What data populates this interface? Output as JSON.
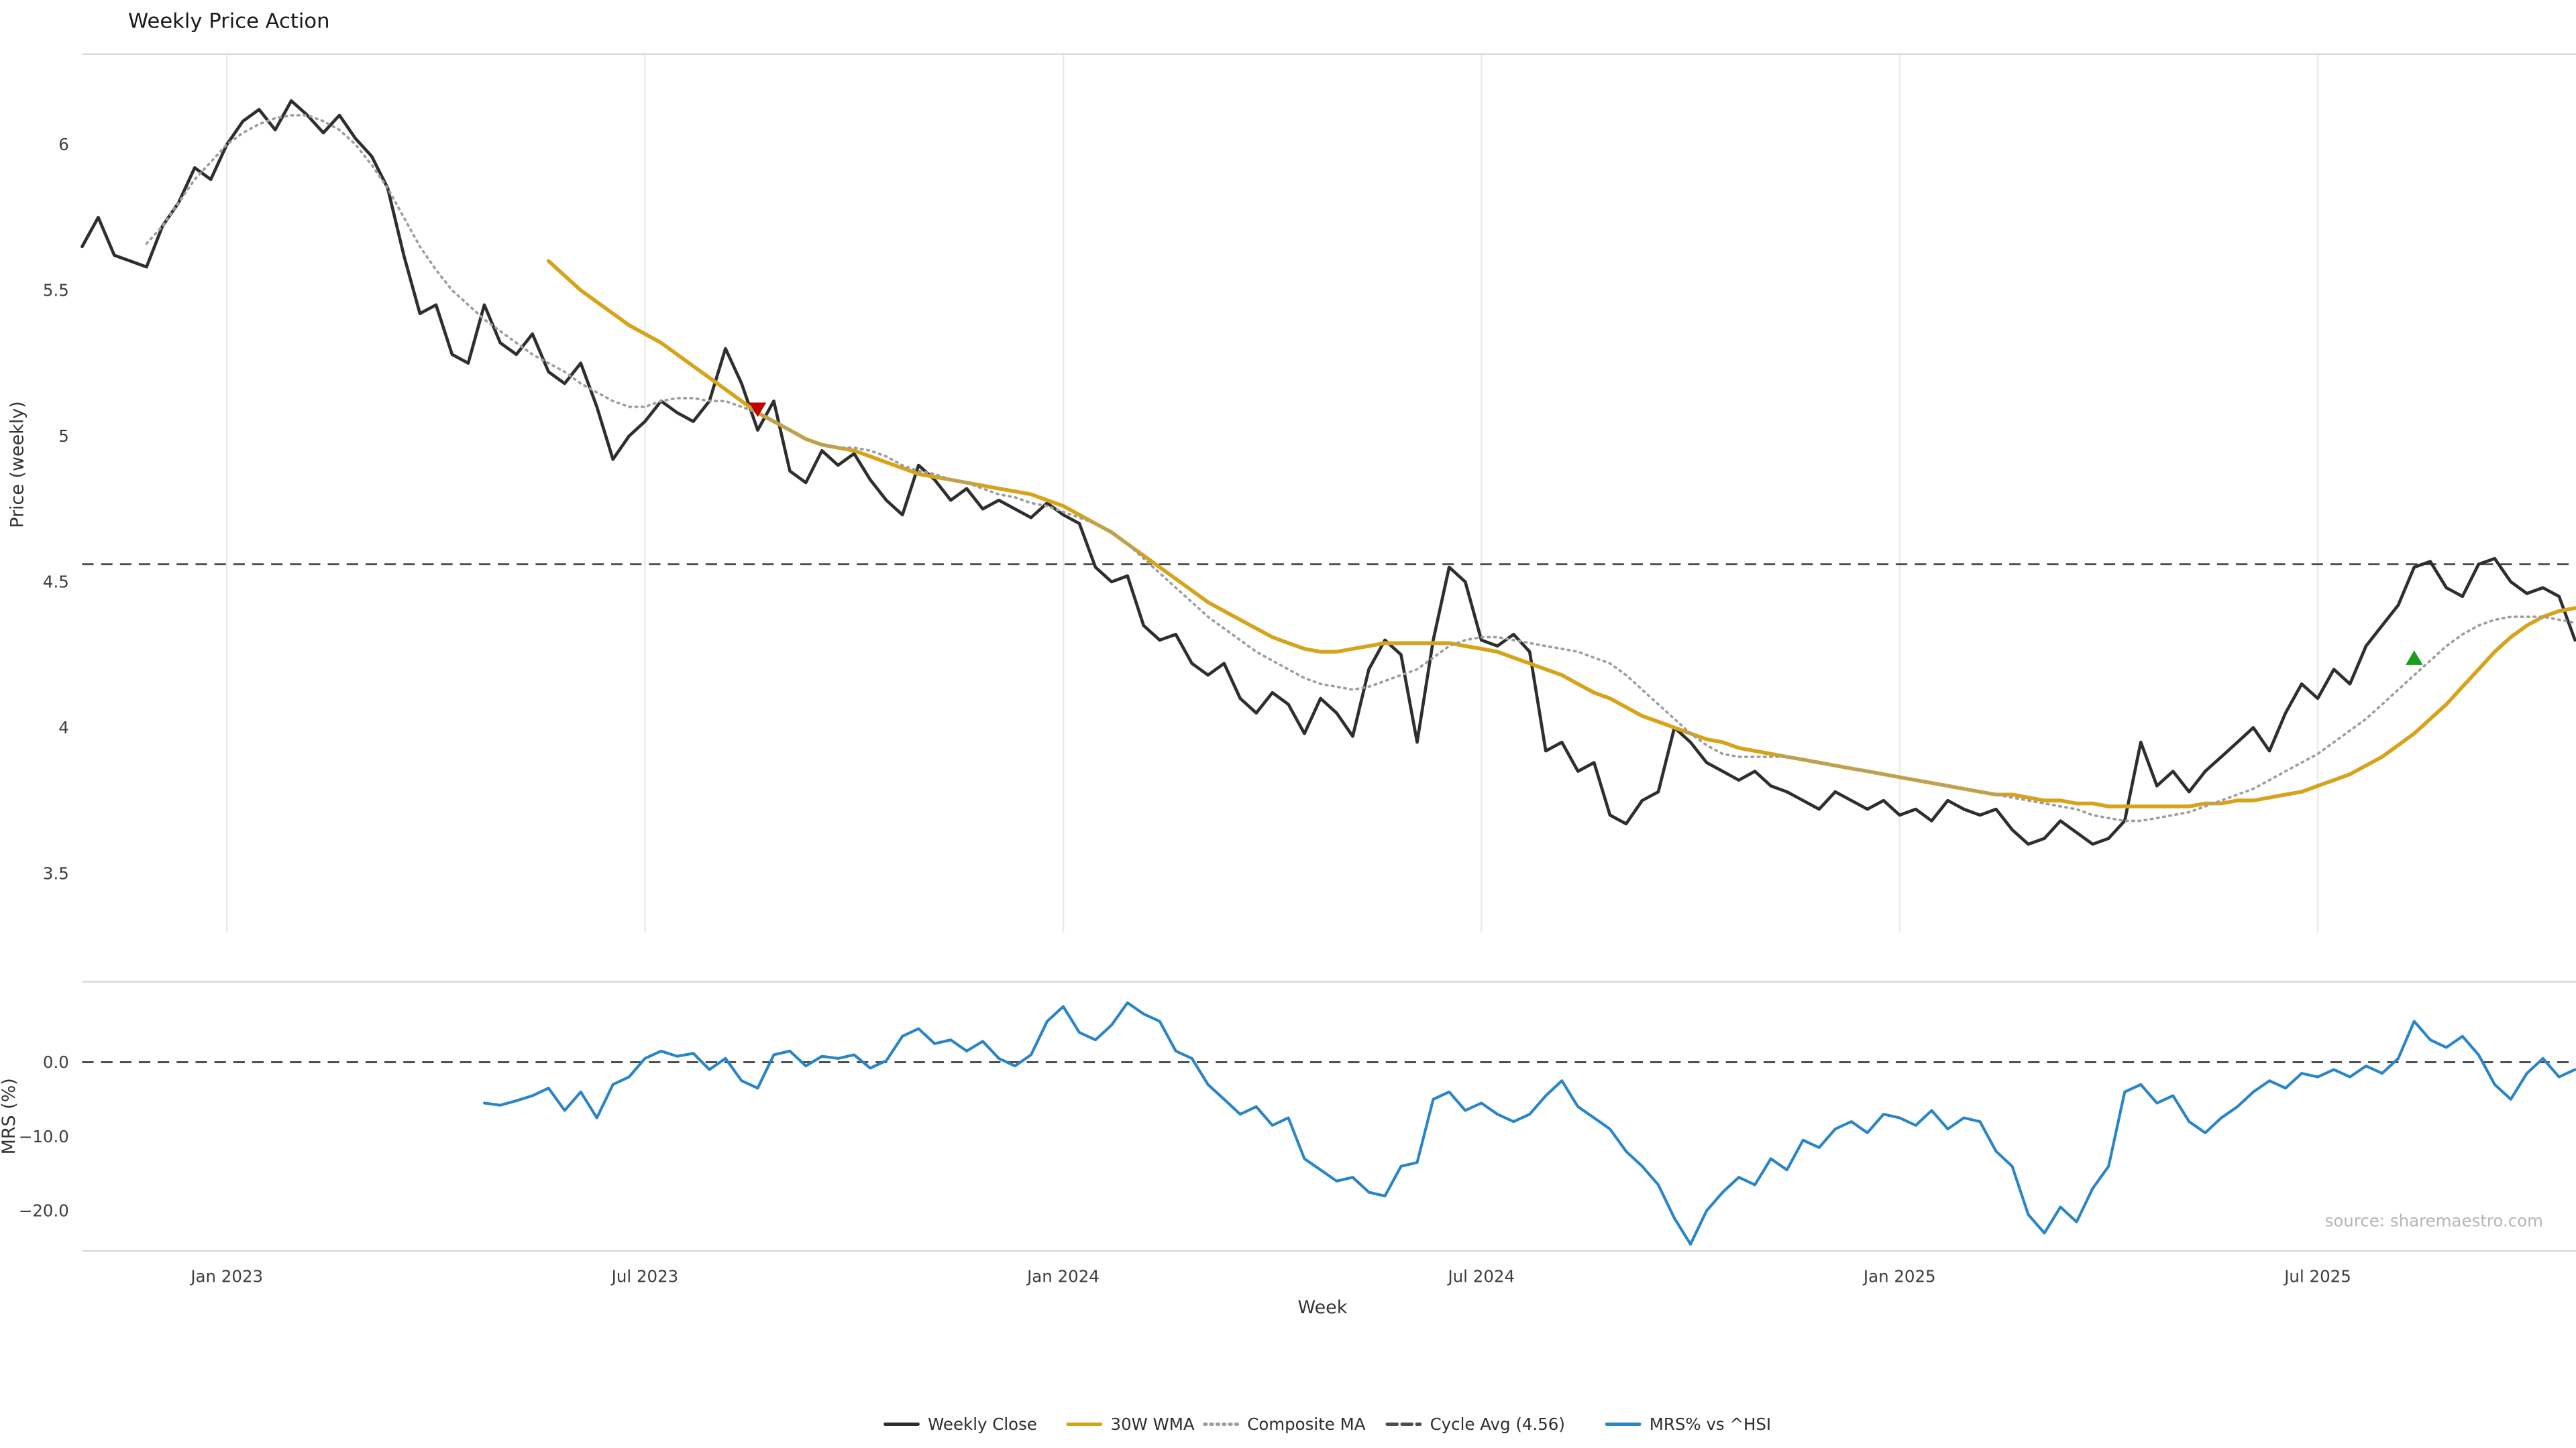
{
  "chart": {
    "title": "Weekly Price Action",
    "xlabel": "Week",
    "price_ylabel": "Price (weekly)",
    "mrs_ylabel": "MRS (%)",
    "source": "source: sharemaestro.com"
  },
  "colors": {
    "close": "#2e2e2e",
    "wma": "#d6a41b",
    "composite": "#9e9e9e",
    "cycle_avg": "#4d4d4d",
    "mrs": "#2a85c7",
    "sell_marker": "#c00000",
    "buy_marker": "#1a9e1a",
    "grid": "#ebebeb",
    "spine": "#d9d9d9"
  },
  "chart_data": {
    "type": "line",
    "title": "Weekly Price Action",
    "xlabel": "Week",
    "x_unit": "weekly index, week 0 = early Nov 2022",
    "grid": "vertical-only",
    "legend_position": "bottom-center",
    "x_ticks": [
      {
        "week": 9,
        "label": "Jan 2023"
      },
      {
        "week": 35,
        "label": "Jul 2023"
      },
      {
        "week": 61,
        "label": "Jan 2024"
      },
      {
        "week": 87,
        "label": "Jul 2024"
      },
      {
        "week": 113,
        "label": "Jan 2025"
      },
      {
        "week": 139,
        "label": "Jul 2025"
      }
    ],
    "price_panel": {
      "ylabel": "Price (weekly)",
      "ylim": [
        3.3,
        6.31
      ],
      "yticks": [
        {
          "v": 6,
          "label": "6"
        },
        {
          "v": 5.5,
          "label": "5.5"
        },
        {
          "v": 5,
          "label": "5"
        },
        {
          "v": 4.5,
          "label": "4.5"
        },
        {
          "v": 4,
          "label": "4"
        },
        {
          "v": 3.5,
          "label": "3.5"
        }
      ]
    },
    "mrs_panel": {
      "ylabel": "MRS (%)",
      "ylim": [
        -25.3,
        10.8
      ],
      "yticks": [
        {
          "v": 0,
          "label": "0.0"
        },
        {
          "v": -10,
          "label": "−10.0"
        },
        {
          "v": -20,
          "label": "−20.0"
        }
      ]
    },
    "reference_lines": [
      {
        "panel": "price",
        "value": 4.56,
        "label": "Cycle Avg (4.56)",
        "style": "dashed"
      },
      {
        "panel": "mrs",
        "value": 0,
        "label": "zero-line",
        "style": "dashed"
      }
    ],
    "markers": [
      {
        "kind": "sell",
        "shape": "triangle-down",
        "week": 42,
        "price": 5.09
      },
      {
        "kind": "buy",
        "shape": "triangle-up",
        "week": 145,
        "price": 4.24
      }
    ],
    "series": [
      {
        "name": "Weekly Close",
        "panel": "price",
        "color_key": "close",
        "style": "solid",
        "width": 1.9,
        "start_week": 0,
        "values": [
          5.65,
          5.75,
          5.62,
          5.6,
          5.58,
          5.72,
          5.8,
          5.92,
          5.88,
          6.0,
          6.08,
          6.12,
          6.05,
          6.15,
          6.1,
          6.04,
          6.1,
          6.02,
          5.96,
          5.85,
          5.62,
          5.42,
          5.45,
          5.28,
          5.25,
          5.45,
          5.32,
          5.28,
          5.35,
          5.22,
          5.18,
          5.25,
          5.1,
          4.92,
          5.0,
          5.05,
          5.12,
          5.08,
          5.05,
          5.12,
          5.3,
          5.18,
          5.02,
          5.12,
          4.88,
          4.84,
          4.95,
          4.9,
          4.94,
          4.85,
          4.78,
          4.73,
          4.9,
          4.85,
          4.78,
          4.82,
          4.75,
          4.78,
          4.75,
          4.72,
          4.77,
          4.73,
          4.7,
          4.55,
          4.5,
          4.52,
          4.35,
          4.3,
          4.32,
          4.22,
          4.18,
          4.22,
          4.1,
          4.05,
          4.12,
          4.08,
          3.98,
          4.1,
          4.05,
          3.97,
          4.2,
          4.3,
          4.25,
          3.95,
          4.3,
          4.55,
          4.5,
          4.3,
          4.28,
          4.32,
          4.26,
          3.92,
          3.95,
          3.85,
          3.88,
          3.7,
          3.67,
          3.75,
          3.78,
          4.0,
          3.95,
          3.88,
          3.85,
          3.82,
          3.85,
          3.8,
          3.78,
          3.75,
          3.72,
          3.78,
          3.75,
          3.72,
          3.75,
          3.7,
          3.72,
          3.68,
          3.75,
          3.72,
          3.7,
          3.72,
          3.65,
          3.6,
          3.62,
          3.68,
          3.64,
          3.6,
          3.62,
          3.68,
          3.95,
          3.8,
          3.85,
          3.78,
          3.85,
          3.9,
          3.95,
          4.0,
          3.92,
          4.05,
          4.15,
          4.1,
          4.2,
          4.15,
          4.28,
          4.35,
          4.42,
          4.55,
          4.57,
          4.48,
          4.45,
          4.56,
          4.58,
          4.5,
          4.46,
          4.48,
          4.45,
          4.3
        ]
      },
      {
        "name": "30W WMA",
        "panel": "price",
        "color_key": "wma",
        "style": "solid",
        "width": 2.3,
        "start_week": 29,
        "values": [
          5.6,
          5.55,
          5.5,
          5.46,
          5.42,
          5.38,
          5.35,
          5.32,
          5.28,
          5.24,
          5.2,
          5.16,
          5.12,
          5.08,
          5.05,
          5.02,
          4.99,
          4.97,
          4.96,
          4.95,
          4.93,
          4.91,
          4.89,
          4.87,
          4.86,
          4.85,
          4.84,
          4.83,
          4.82,
          4.81,
          4.8,
          4.78,
          4.76,
          4.73,
          4.7,
          4.67,
          4.63,
          4.59,
          4.55,
          4.51,
          4.47,
          4.43,
          4.4,
          4.37,
          4.34,
          4.31,
          4.29,
          4.27,
          4.26,
          4.26,
          4.27,
          4.28,
          4.29,
          4.29,
          4.29,
          4.29,
          4.29,
          4.28,
          4.27,
          4.26,
          4.24,
          4.22,
          4.2,
          4.18,
          4.15,
          4.12,
          4.1,
          4.07,
          4.04,
          4.02,
          4.0,
          3.98,
          3.96,
          3.95,
          3.93,
          3.92,
          3.91,
          3.9,
          3.89,
          3.88,
          3.87,
          3.86,
          3.85,
          3.84,
          3.83,
          3.82,
          3.81,
          3.8,
          3.79,
          3.78,
          3.77,
          3.77,
          3.76,
          3.75,
          3.75,
          3.74,
          3.74,
          3.73,
          3.73,
          3.73,
          3.73,
          3.73,
          3.73,
          3.74,
          3.74,
          3.75,
          3.75,
          3.76,
          3.77,
          3.78,
          3.8,
          3.82,
          3.84,
          3.87,
          3.9,
          3.94,
          3.98,
          4.03,
          4.08,
          4.14,
          4.2,
          4.26,
          4.31,
          4.35,
          4.38,
          4.4,
          4.41
        ]
      },
      {
        "name": "Composite MA",
        "panel": "price",
        "color_key": "composite",
        "style": "dotted",
        "width": 1.5,
        "start_week": 4,
        "values": [
          5.66,
          5.72,
          5.8,
          5.88,
          5.94,
          6.0,
          6.04,
          6.07,
          6.09,
          6.1,
          6.1,
          6.08,
          6.05,
          6.0,
          5.93,
          5.85,
          5.75,
          5.65,
          5.57,
          5.5,
          5.45,
          5.4,
          5.36,
          5.32,
          5.28,
          5.25,
          5.22,
          5.18,
          5.15,
          5.12,
          5.1,
          5.1,
          5.12,
          5.13,
          5.13,
          5.12,
          5.12,
          5.1,
          5.08,
          5.05,
          5.02,
          4.99,
          4.97,
          4.96,
          4.96,
          4.95,
          4.93,
          4.9,
          4.88,
          4.87,
          4.85,
          4.84,
          4.82,
          4.8,
          4.79,
          4.77,
          4.76,
          4.74,
          4.72,
          4.7,
          4.67,
          4.63,
          4.58,
          4.53,
          4.48,
          4.43,
          4.38,
          4.34,
          4.3,
          4.26,
          4.23,
          4.2,
          4.17,
          4.15,
          4.14,
          4.13,
          4.14,
          4.16,
          4.18,
          4.2,
          4.24,
          4.28,
          4.3,
          4.31,
          4.31,
          4.3,
          4.29,
          4.28,
          4.27,
          4.26,
          4.24,
          4.22,
          4.18,
          4.13,
          4.08,
          4.03,
          3.98,
          3.94,
          3.91,
          3.9,
          3.9,
          3.9,
          3.9,
          3.89,
          3.88,
          3.87,
          3.86,
          3.85,
          3.84,
          3.83,
          3.82,
          3.81,
          3.8,
          3.79,
          3.78,
          3.77,
          3.76,
          3.75,
          3.74,
          3.73,
          3.72,
          3.7,
          3.69,
          3.68,
          3.68,
          3.69,
          3.7,
          3.71,
          3.73,
          3.75,
          3.77,
          3.79,
          3.82,
          3.85,
          3.88,
          3.91,
          3.95,
          3.99,
          4.03,
          4.08,
          4.13,
          4.18,
          4.23,
          4.28,
          4.32,
          4.35,
          4.37,
          4.38,
          4.38,
          4.38,
          4.37,
          4.36
        ]
      },
      {
        "name": "MRS% vs ^HSI",
        "panel": "mrs",
        "color_key": "mrs",
        "style": "solid",
        "width": 1.7,
        "start_week": 25,
        "values": [
          -5.5,
          -5.8,
          -5.2,
          -4.5,
          -3.5,
          -6.5,
          -4.0,
          -7.5,
          -3.0,
          -2.0,
          0.5,
          1.5,
          0.8,
          1.2,
          -1.0,
          0.5,
          -2.5,
          -3.5,
          1.0,
          1.5,
          -0.5,
          0.8,
          0.5,
          1.0,
          -0.8,
          0.2,
          3.5,
          4.5,
          2.5,
          3.0,
          1.5,
          2.8,
          0.5,
          -0.5,
          1.0,
          5.5,
          7.5,
          4.0,
          3.0,
          5.0,
          8.0,
          6.5,
          5.5,
          1.5,
          0.5,
          -3.0,
          -5.0,
          -7.0,
          -6.0,
          -8.5,
          -7.5,
          -13.0,
          -14.5,
          -16.0,
          -15.5,
          -17.5,
          -18.0,
          -14.0,
          -13.5,
          -5.0,
          -4.0,
          -6.5,
          -5.5,
          -7.0,
          -8.0,
          -7.0,
          -4.5,
          -2.5,
          -6.0,
          -7.5,
          -9.0,
          -12.0,
          -14.0,
          -16.5,
          -21.0,
          -24.5,
          -20.0,
          -17.5,
          -15.5,
          -16.5,
          -13.0,
          -14.5,
          -10.5,
          -11.5,
          -9.0,
          -8.0,
          -9.5,
          -7.0,
          -7.5,
          -8.5,
          -6.5,
          -9.0,
          -7.5,
          -8.0,
          -12.0,
          -14.0,
          -20.5,
          -23.0,
          -19.5,
          -21.5,
          -17.0,
          -14.0,
          -4.0,
          -3.0,
          -5.5,
          -4.5,
          -8.0,
          -9.5,
          -7.5,
          -6.0,
          -4.0,
          -2.5,
          -3.5,
          -1.5,
          -2.0,
          -1.0,
          -2.0,
          -0.5,
          -1.5,
          0.5,
          5.5,
          3.0,
          2.0,
          3.5,
          1.0,
          -3.0,
          -5.0,
          -1.5,
          0.5,
          -2.0,
          -1.0
        ]
      }
    ],
    "legend": [
      {
        "label": "Weekly Close",
        "color_key": "close",
        "style": "solid"
      },
      {
        "label": "30W WMA",
        "color_key": "wma",
        "style": "solid"
      },
      {
        "label": "Composite MA",
        "color_key": "composite",
        "style": "dotted"
      },
      {
        "label": "Cycle Avg (4.56)",
        "color_key": "cycle_avg",
        "style": "dashed"
      },
      {
        "label": "MRS% vs ^HSI",
        "color_key": "mrs",
        "style": "solid"
      }
    ]
  }
}
